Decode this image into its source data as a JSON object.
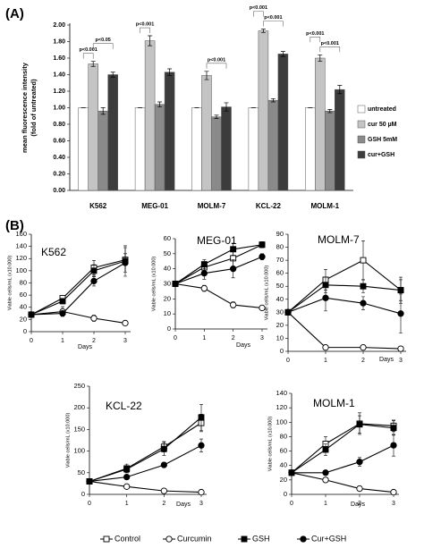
{
  "chart_data": [
    {
      "type": "bar",
      "panel_label": "(A)",
      "y_label": [
        "mean fluorescence intensity",
        "(fold of untreated)"
      ],
      "categories": [
        "K562",
        "MEG-01",
        "MOLM-7",
        "KCL-22",
        "MOLM-1"
      ],
      "series": [
        {
          "name": "untreated",
          "color": "#ffffff",
          "values": [
            1.0,
            1.0,
            1.0,
            1.0,
            1.0
          ],
          "errors": [
            0,
            0,
            0,
            0,
            0
          ]
        },
        {
          "name": "cur 50 µM",
          "color": "#c4c4c4",
          "values": [
            1.53,
            1.81,
            1.39,
            1.93,
            1.6
          ],
          "errors": [
            0.03,
            0.06,
            0.05,
            0.02,
            0.04
          ]
        },
        {
          "name": "GSH 5mM",
          "color": "#8a8a8a",
          "values": [
            0.96,
            1.04,
            0.89,
            1.09,
            0.96
          ],
          "errors": [
            0.04,
            0.03,
            0.02,
            0.02,
            0.02
          ]
        },
        {
          "name": "cur+GSH",
          "color": "#3c3c3c",
          "values": [
            1.4,
            1.43,
            1.01,
            1.65,
            1.22
          ],
          "errors": [
            0.03,
            0.04,
            0.05,
            0.03,
            0.05
          ]
        }
      ],
      "annotations": [
        "p<0.001",
        "p<0.05",
        "p<0.001",
        "p<0.001",
        "p<0.001",
        "p<0.001",
        "p<0.001",
        "p<0.001"
      ],
      "ylim": [
        0,
        2
      ],
      "yticks": [
        {
          "value": 0,
          "label": "0.00"
        },
        {
          "value": 0.2,
          "label": "0.20"
        },
        {
          "value": 0.4,
          "label": "0.40"
        },
        {
          "value": 0.6,
          "label": "0.60"
        },
        {
          "value": 0.8,
          "label": "0.80"
        },
        {
          "value": 1,
          "label": "1.00"
        },
        {
          "value": 1.2,
          "label": "1.20"
        },
        {
          "value": 1.4,
          "label": "1.40"
        },
        {
          "value": 1.6,
          "label": "1.60"
        },
        {
          "value": 1.8,
          "label": "1.80"
        },
        {
          "value": 2,
          "label": "2.00"
        }
      ]
    },
    {
      "type": "line",
      "panel_label": "(B)",
      "title": "K562",
      "y_label": "Viable cells/mL (x10.000)",
      "x_label": "Days",
      "x": [
        0,
        1,
        2,
        3
      ],
      "xlim": [
        0,
        3
      ],
      "xticks": [
        0,
        1,
        2,
        3
      ],
      "ylim": [
        0,
        160
      ],
      "yticks": [
        0,
        20,
        40,
        60,
        80,
        100,
        120,
        140,
        160
      ],
      "series": [
        {
          "name": "Control",
          "color": "#000000",
          "marker": "square",
          "marker_fill": "#ffffff",
          "values": [
            28,
            55,
            105,
            118
          ],
          "errors": [
            2,
            4,
            12,
            20
          ]
        },
        {
          "name": "Curcumin",
          "color": "#000000",
          "marker": "circle",
          "marker_fill": "#ffffff",
          "values": [
            28,
            33,
            22,
            14
          ],
          "errors": [
            2,
            8,
            5,
            2
          ]
        },
        {
          "name": "GSH",
          "color": "#000000",
          "marker": "square",
          "marker_fill": "#000000",
          "values": [
            28,
            50,
            100,
            116
          ],
          "errors": [
            2,
            4,
            10,
            25
          ]
        },
        {
          "name": "Cur+GSH",
          "color": "#000000",
          "marker": "circle",
          "marker_fill": "#000000",
          "values": [
            28,
            30,
            83,
            113
          ],
          "errors": [
            2,
            4,
            8,
            15
          ]
        }
      ]
    },
    {
      "type": "line",
      "title": "MEG-01",
      "y_label": "Viable cells/mL (x10.000)",
      "x_label": "Days",
      "x": [
        0,
        1,
        2,
        3
      ],
      "xlim": [
        0,
        3
      ],
      "xticks": [
        0,
        1,
        2,
        3
      ],
      "ylim": [
        0,
        60
      ],
      "yticks": [
        0,
        10,
        20,
        30,
        40,
        50,
        60
      ],
      "series": [
        {
          "name": "Control",
          "color": "#000000",
          "marker": "square",
          "marker_fill": "#ffffff",
          "values": [
            30,
            41,
            47,
            56
          ],
          "errors": [
            1,
            3,
            6,
            2
          ]
        },
        {
          "name": "Curcumin",
          "color": "#000000",
          "marker": "circle",
          "marker_fill": "#ffffff",
          "values": [
            30,
            27,
            16,
            14
          ],
          "errors": [
            1,
            2,
            2,
            1
          ]
        },
        {
          "name": "GSH",
          "color": "#000000",
          "marker": "square",
          "marker_fill": "#000000",
          "values": [
            30,
            43,
            53,
            56
          ],
          "errors": [
            1,
            3,
            4,
            2
          ]
        },
        {
          "name": "Cur+GSH",
          "color": "#000000",
          "marker": "circle",
          "marker_fill": "#000000",
          "values": [
            30,
            37,
            40,
            48
          ],
          "errors": [
            1,
            4,
            6,
            2
          ]
        }
      ]
    },
    {
      "type": "line",
      "title": "MOLM-7",
      "y_label": "Viable cells/mL (x10.000)",
      "x_label": "Days",
      "x": [
        0,
        1,
        2,
        3
      ],
      "xlim": [
        0,
        3
      ],
      "xticks": [
        0,
        1,
        2,
        3
      ],
      "ylim": [
        0,
        90
      ],
      "yticks": [
        0,
        10,
        20,
        30,
        40,
        50,
        60,
        70,
        80,
        90
      ],
      "series": [
        {
          "name": "Control",
          "color": "#000000",
          "marker": "square",
          "marker_fill": "#ffffff",
          "values": [
            30,
            55,
            70,
            47
          ],
          "errors": [
            2,
            8,
            15,
            10
          ]
        },
        {
          "name": "Curcumin",
          "color": "#000000",
          "marker": "circle",
          "marker_fill": "#ffffff",
          "values": [
            30,
            3,
            3,
            2
          ],
          "errors": [
            2,
            1,
            1,
            1
          ]
        },
        {
          "name": "GSH",
          "color": "#000000",
          "marker": "square",
          "marker_fill": "#000000",
          "values": [
            30,
            51,
            50,
            47
          ],
          "errors": [
            2,
            6,
            5,
            8
          ]
        },
        {
          "name": "Cur+GSH",
          "color": "#000000",
          "marker": "circle",
          "marker_fill": "#000000",
          "values": [
            30,
            41,
            37,
            29
          ],
          "errors": [
            2,
            10,
            5,
            15
          ]
        }
      ]
    },
    {
      "type": "line",
      "title": "KCL-22",
      "y_label": "Viable cells/mL (x10.000)",
      "x_label": "Days",
      "x": [
        0,
        1,
        2,
        3
      ],
      "xlim": [
        0,
        3
      ],
      "xticks": [
        0,
        1,
        2,
        3
      ],
      "ylim": [
        0,
        250
      ],
      "yticks": [
        0,
        50,
        100,
        150,
        200,
        250
      ],
      "series": [
        {
          "name": "Control",
          "color": "#000000",
          "marker": "square",
          "marker_fill": "#ffffff",
          "values": [
            30,
            60,
            110,
            165
          ],
          "errors": [
            3,
            10,
            12,
            20
          ]
        },
        {
          "name": "Curcumin",
          "color": "#000000",
          "marker": "circle",
          "marker_fill": "#ffffff",
          "values": [
            30,
            18,
            8,
            5
          ],
          "errors": [
            3,
            3,
            2,
            1
          ]
        },
        {
          "name": "GSH",
          "color": "#000000",
          "marker": "square",
          "marker_fill": "#000000",
          "values": [
            30,
            58,
            105,
            178
          ],
          "errors": [
            3,
            8,
            15,
            30
          ]
        },
        {
          "name": "Cur+GSH",
          "color": "#000000",
          "marker": "circle",
          "marker_fill": "#000000",
          "values": [
            30,
            40,
            68,
            113
          ],
          "errors": [
            3,
            5,
            6,
            15
          ]
        }
      ]
    },
    {
      "type": "line",
      "title": "MOLM-1",
      "y_label": "Viable cells/mL (x10.000)",
      "x_label": "Days",
      "x": [
        0,
        1,
        2,
        3
      ],
      "xlim": [
        0,
        3
      ],
      "xticks": [
        0,
        1,
        2,
        3
      ],
      "ylim": [
        0,
        140
      ],
      "yticks": [
        0,
        20,
        40,
        60,
        80,
        100,
        120,
        140
      ],
      "series": [
        {
          "name": "Control",
          "color": "#000000",
          "marker": "square",
          "marker_fill": "#ffffff",
          "values": [
            30,
            70,
            98,
            95
          ],
          "errors": [
            3,
            10,
            15,
            8
          ]
        },
        {
          "name": "Curcumin",
          "color": "#000000",
          "marker": "circle",
          "marker_fill": "#ffffff",
          "values": [
            30,
            20,
            8,
            3
          ],
          "errors": [
            3,
            3,
            2,
            1
          ]
        },
        {
          "name": "GSH",
          "color": "#000000",
          "marker": "square",
          "marker_fill": "#000000",
          "values": [
            30,
            62,
            97,
            92
          ],
          "errors": [
            3,
            8,
            12,
            10
          ]
        },
        {
          "name": "Cur+GSH",
          "color": "#000000",
          "marker": "circle",
          "marker_fill": "#000000",
          "values": [
            30,
            30,
            45,
            68
          ],
          "errors": [
            3,
            3,
            6,
            15
          ]
        }
      ]
    }
  ]
}
